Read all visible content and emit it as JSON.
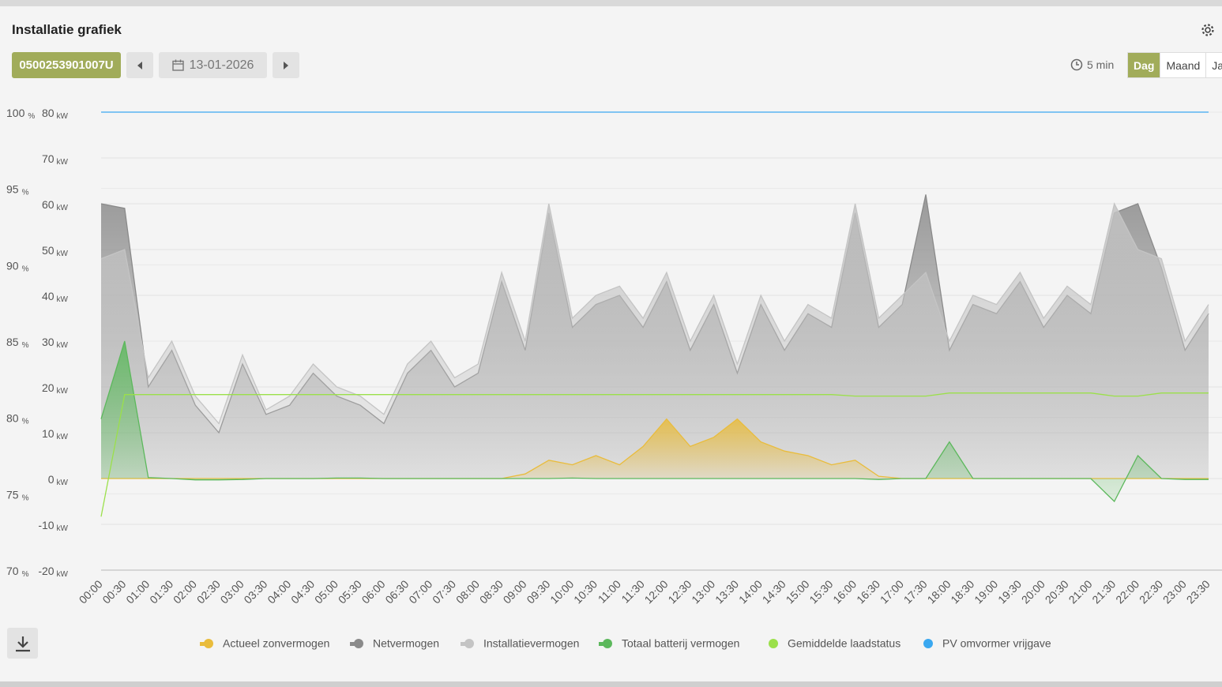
{
  "header": {
    "title": "Installatie grafiek",
    "device_id": "0500253901007U",
    "date": "13-01-2026",
    "interval": "5 min",
    "periods": [
      "Dag",
      "Maand",
      "Jaar"
    ],
    "active_period": 0
  },
  "chart_data": {
    "type": "line",
    "categories": [
      "00:00",
      "00:30",
      "01:00",
      "01:30",
      "02:00",
      "02:30",
      "03:00",
      "03:30",
      "04:00",
      "04:30",
      "05:00",
      "05:30",
      "06:00",
      "06:30",
      "07:00",
      "07:30",
      "08:00",
      "08:30",
      "09:00",
      "09:30",
      "10:00",
      "10:30",
      "11:00",
      "11:30",
      "12:00",
      "12:30",
      "13:00",
      "13:30",
      "14:00",
      "14:30",
      "15:00",
      "15:30",
      "16:00",
      "16:30",
      "17:00",
      "17:30",
      "18:00",
      "18:30",
      "19:00",
      "19:30",
      "20:00",
      "20:30",
      "21:00",
      "21:30",
      "22:00",
      "22:30",
      "23:00",
      "23:30"
    ],
    "ylim": [
      -20,
      80
    ],
    "yticks": [
      -20,
      -10,
      0,
      10,
      20,
      30,
      40,
      50,
      60,
      70,
      80
    ],
    "y_unit": "kW",
    "y2lim": [
      70,
      100
    ],
    "y2ticks": [
      70,
      75,
      80,
      85,
      90,
      95,
      100
    ],
    "y2_unit": "%",
    "grid": true,
    "series": [
      {
        "name": "Netvermogen",
        "color": "#8a8a8a",
        "style": "area",
        "values": [
          60,
          59,
          20,
          28,
          16,
          10,
          25,
          14,
          16,
          23,
          18,
          16,
          12,
          23,
          28,
          20,
          23,
          43,
          28,
          58,
          33,
          38,
          40,
          33,
          43,
          28,
          38,
          23,
          38,
          28,
          36,
          33,
          58,
          33,
          38,
          62,
          28,
          38,
          36,
          43,
          33,
          40,
          36,
          58,
          60,
          46,
          28,
          36
        ]
      },
      {
        "name": "Installatievermogen",
        "color": "#c4c4c4",
        "style": "area",
        "values": [
          48,
          50,
          22,
          30,
          18,
          12,
          27,
          15,
          18,
          25,
          20,
          18,
          14,
          25,
          30,
          22,
          25,
          45,
          30,
          60,
          35,
          40,
          42,
          35,
          45,
          30,
          40,
          25,
          40,
          30,
          38,
          35,
          60,
          35,
          40,
          45,
          30,
          40,
          38,
          45,
          35,
          42,
          38,
          60,
          50,
          48,
          30,
          38
        ]
      },
      {
        "name": "Actueel zonvermogen",
        "color": "#e9bc3c",
        "style": "area",
        "values": [
          0,
          0,
          0,
          0,
          0,
          0,
          0,
          0,
          0,
          0,
          0,
          0,
          0,
          0,
          0,
          0,
          0,
          0,
          1,
          4,
          3,
          5,
          3,
          7,
          13,
          7,
          9,
          13,
          8,
          6,
          5,
          3,
          4,
          0.5,
          0,
          0,
          0,
          0,
          0,
          0,
          0,
          0,
          0,
          0,
          0,
          0,
          0,
          0
        ]
      },
      {
        "name": "Totaal batterij vermogen",
        "color": "#5cb85c",
        "style": "area",
        "values": [
          13,
          30,
          0.2,
          0,
          -0.3,
          -0.3,
          -0.2,
          0,
          0,
          0,
          0.1,
          0.1,
          0,
          0,
          0,
          0,
          0,
          0,
          0,
          0,
          0.1,
          0,
          0,
          0,
          0,
          0,
          0,
          0,
          0,
          0,
          0,
          0,
          0,
          -0.2,
          0,
          0,
          8,
          0,
          0,
          0,
          0,
          0,
          0,
          -5,
          5,
          0,
          -0.2,
          -0.2
        ]
      },
      {
        "name": "Gemiddelde laadstatus",
        "color": "#9be04a",
        "style": "line",
        "axis": "y2",
        "values": [
          73.5,
          81.5,
          81.5,
          81.5,
          81.5,
          81.5,
          81.5,
          81.5,
          81.5,
          81.5,
          81.5,
          81.5,
          81.5,
          81.5,
          81.5,
          81.5,
          81.5,
          81.5,
          81.5,
          81.5,
          81.5,
          81.5,
          81.5,
          81.5,
          81.5,
          81.5,
          81.5,
          81.5,
          81.5,
          81.5,
          81.5,
          81.5,
          81.4,
          81.4,
          81.4,
          81.4,
          81.6,
          81.6,
          81.6,
          81.6,
          81.6,
          81.6,
          81.6,
          81.4,
          81.4,
          81.6,
          81.6,
          81.6
        ]
      },
      {
        "name": "PV omvormer vrijgave",
        "color": "#3aa8f0",
        "style": "line",
        "axis": "y2",
        "values": [
          100,
          100,
          100,
          100,
          100,
          100,
          100,
          100,
          100,
          100,
          100,
          100,
          100,
          100,
          100,
          100,
          100,
          100,
          100,
          100,
          100,
          100,
          100,
          100,
          100,
          100,
          100,
          100,
          100,
          100,
          100,
          100,
          100,
          100,
          100,
          100,
          100,
          100,
          100,
          100,
          100,
          100,
          100,
          100,
          100,
          100,
          100,
          100
        ]
      }
    ],
    "legend_order": [
      2,
      0,
      1,
      3,
      4,
      5
    ]
  }
}
